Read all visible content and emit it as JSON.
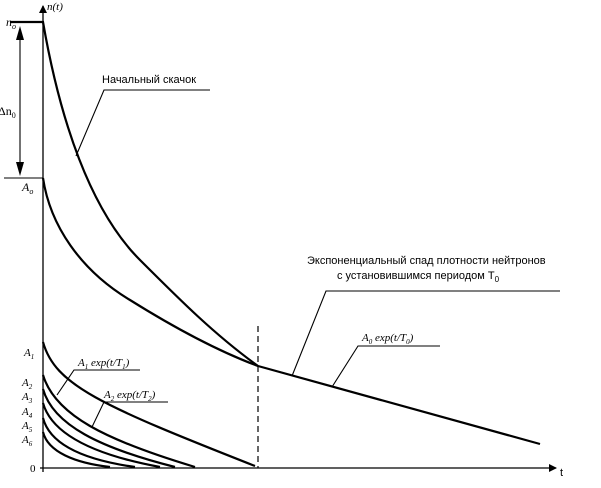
{
  "axes": {
    "y_label": "n(t)",
    "x_label": "t",
    "origin_label": "0"
  },
  "y_levels": {
    "n0": "n",
    "n0_sub": "o",
    "delta": "Δn",
    "delta_sub": "0",
    "a0": "A",
    "a0_sub": "o",
    "a1": "A",
    "a1_sub": "1",
    "a2": "A",
    "a2_sub": "2",
    "a3": "A",
    "a3_sub": "3",
    "a4": "A",
    "a4_sub": "4",
    "a5": "A",
    "a5_sub": "5",
    "a6": "A",
    "a6_sub": "6"
  },
  "annotations": {
    "initial_jump": "Начальный скачок",
    "exp_decay_line1": "Экспоненциальный спад плотности нейтронов",
    "exp_decay_line2": "с  установившимся периодом T",
    "exp_decay_line2_sub": "0",
    "a0_formula": "A",
    "a0_formula_sub": "0",
    "a0_formula_rest": " exp(t/T",
    "a0_formula_sub2": "0",
    "a0_formula_end": ")",
    "a1_formula": "A",
    "a1_formula_sub": "1",
    "a1_formula_rest": " exp(t/T",
    "a1_formula_sub2": "1",
    "a1_formula_end": ")",
    "a2_formula": "A",
    "a2_formula_sub": "2",
    "a2_formula_rest": " exp(t/T",
    "a2_formula_sub2": "2",
    "a2_formula_end": ")"
  }
}
